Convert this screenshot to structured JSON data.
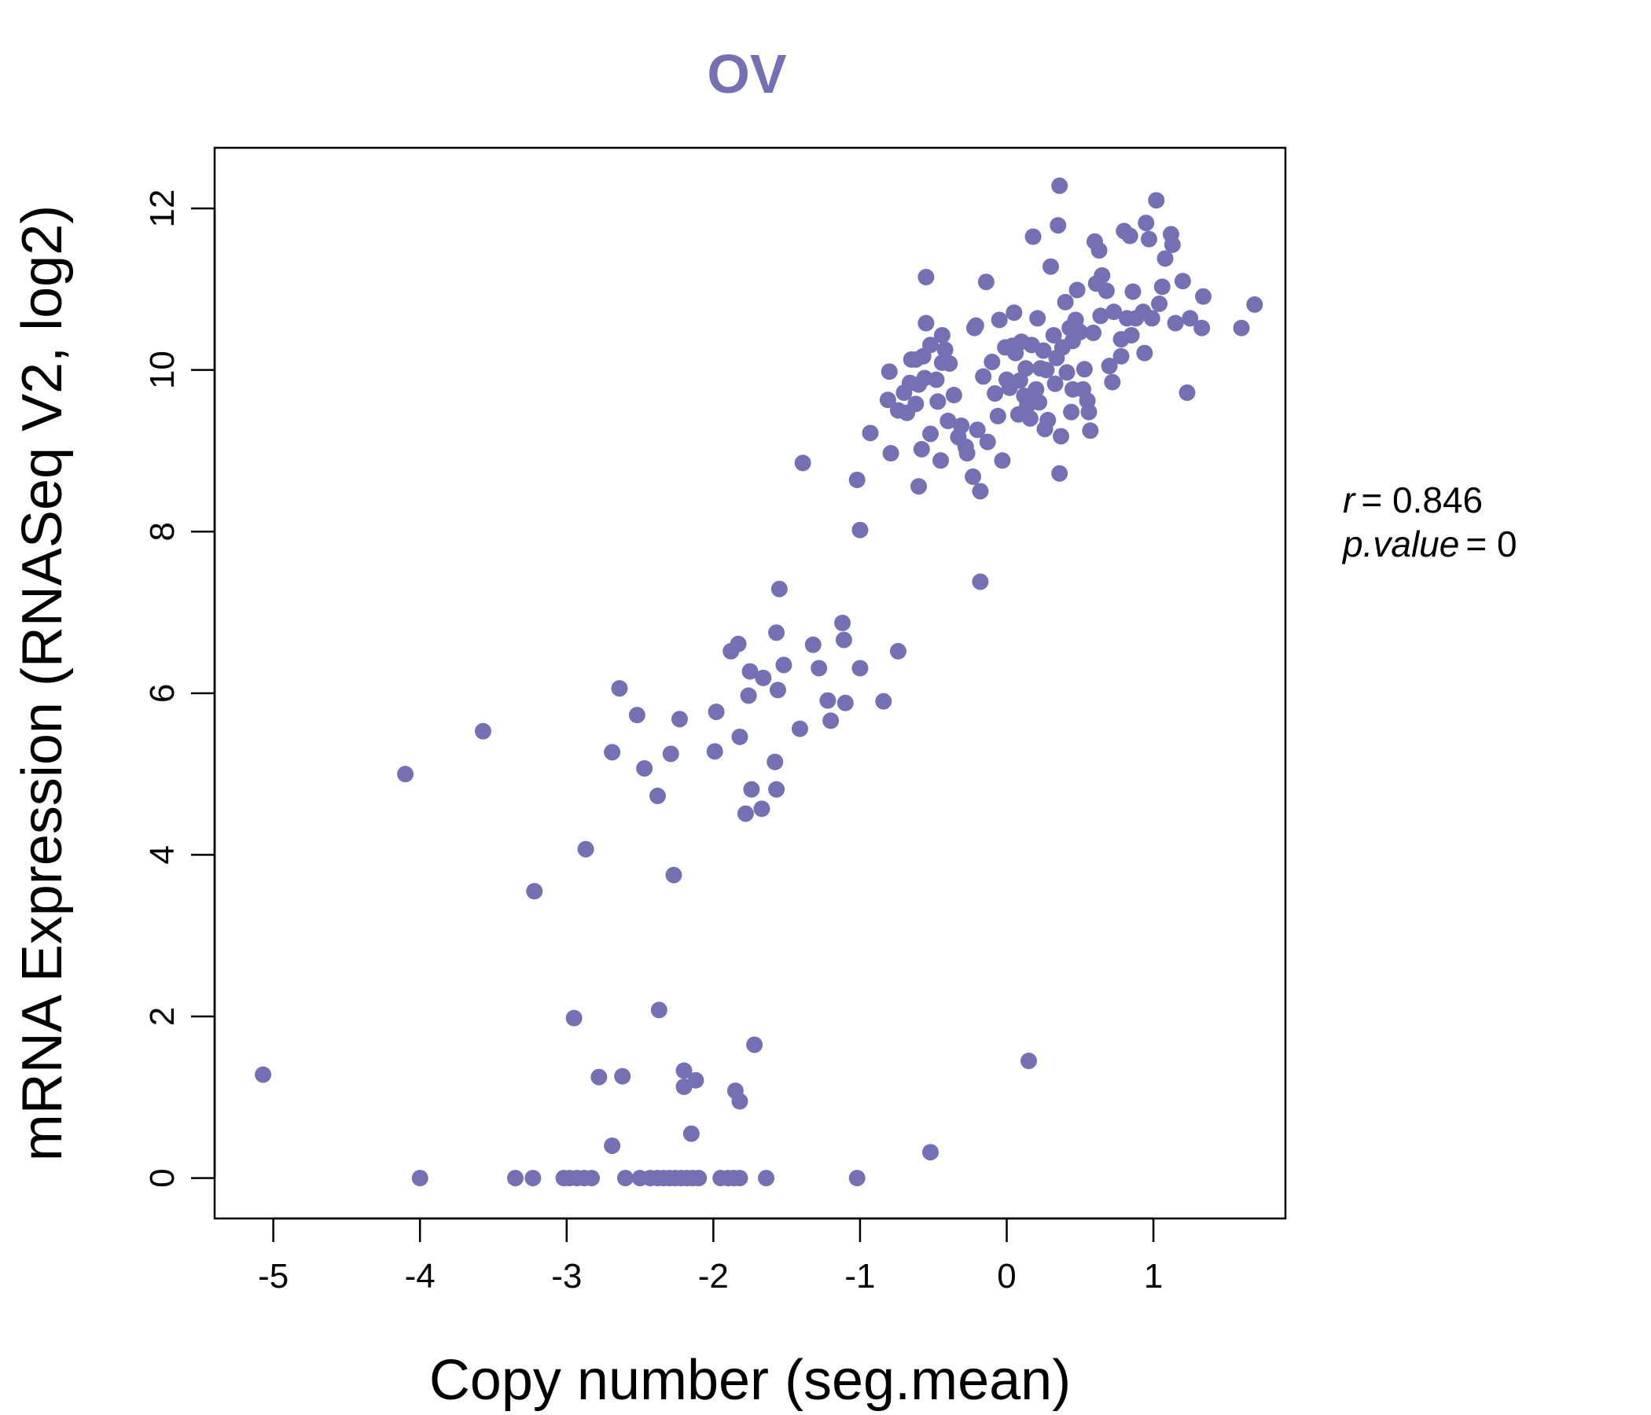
{
  "chart_data": {
    "type": "scatter",
    "title": "OV",
    "xlabel": "Copy number (seg.mean)",
    "ylabel": "mRNA Expression (RNASeq V2, log2)",
    "xlim": [
      -5.4,
      1.9
    ],
    "ylim": [
      -0.5,
      12.75
    ],
    "xticks": [
      -5,
      -4,
      -3,
      -2,
      -1,
      0,
      1
    ],
    "yticks": [
      0,
      2,
      4,
      6,
      8,
      10,
      12
    ],
    "xtick_labels": [
      "-5",
      "-4",
      "-3",
      "-2",
      "-1",
      "0",
      "1"
    ],
    "ytick_labels": [
      "0",
      "2",
      "4",
      "6",
      "8",
      "10",
      "12"
    ],
    "color": "#7570b3",
    "stats": {
      "r_label": "r",
      "r_value": "= 0.846",
      "p_label": "p.value",
      "p_value": "= 0"
    },
    "points": [
      [
        -5.07,
        1.28
      ],
      [
        -4.1,
        5.0
      ],
      [
        -4.0,
        0.0
      ],
      [
        -3.57,
        5.53
      ],
      [
        -3.22,
        3.55
      ],
      [
        -3.35,
        0.0
      ],
      [
        -3.23,
        0.0
      ],
      [
        -2.95,
        1.98
      ],
      [
        -2.87,
        4.07
      ],
      [
        -3.02,
        0.0
      ],
      [
        -2.98,
        0.0
      ],
      [
        -2.93,
        0.0
      ],
      [
        -2.88,
        0.0
      ],
      [
        -2.83,
        0.0
      ],
      [
        -2.78,
        1.25
      ],
      [
        -2.62,
        1.26
      ],
      [
        -2.69,
        0.4
      ],
      [
        -2.69,
        5.27
      ],
      [
        -2.64,
        6.06
      ],
      [
        -2.52,
        5.73
      ],
      [
        -2.47,
        5.07
      ],
      [
        -2.38,
        4.73
      ],
      [
        -2.37,
        2.08
      ],
      [
        -2.29,
        5.25
      ],
      [
        -2.27,
        3.75
      ],
      [
        -2.23,
        5.68
      ],
      [
        -2.2,
        1.33
      ],
      [
        -2.2,
        1.13
      ],
      [
        -2.12,
        1.21
      ],
      [
        -2.15,
        0.55
      ],
      [
        -2.6,
        0.0
      ],
      [
        -2.5,
        0.0
      ],
      [
        -2.43,
        0.0
      ],
      [
        -2.38,
        0.0
      ],
      [
        -2.34,
        0.0
      ],
      [
        -2.3,
        0.0
      ],
      [
        -2.26,
        0.0
      ],
      [
        -2.22,
        0.0
      ],
      [
        -2.18,
        0.0
      ],
      [
        -2.14,
        0.0
      ],
      [
        -2.1,
        0.0
      ],
      [
        -1.98,
        5.77
      ],
      [
        -1.99,
        5.28
      ],
      [
        -1.88,
        6.52
      ],
      [
        -1.83,
        6.61
      ],
      [
        -1.85,
        1.08
      ],
      [
        -1.82,
        0.95
      ],
      [
        -1.82,
        5.46
      ],
      [
        -1.78,
        4.51
      ],
      [
        -1.75,
        6.27
      ],
      [
        -1.76,
        5.97
      ],
      [
        -1.74,
        4.81
      ],
      [
        -1.72,
        1.65
      ],
      [
        -1.67,
        4.57
      ],
      [
        -1.66,
        6.19
      ],
      [
        -1.57,
        6.75
      ],
      [
        -1.56,
        6.04
      ],
      [
        -1.58,
        5.15
      ],
      [
        -1.57,
        4.81
      ],
      [
        -1.55,
        7.29
      ],
      [
        -1.52,
        6.35
      ],
      [
        -1.95,
        0.0
      ],
      [
        -1.9,
        0.0
      ],
      [
        -1.86,
        0.0
      ],
      [
        -1.82,
        0.0
      ],
      [
        -1.64,
        0.0
      ],
      [
        -1.41,
        5.56
      ],
      [
        -1.39,
        8.85
      ],
      [
        -1.32,
        6.6
      ],
      [
        -1.28,
        6.31
      ],
      [
        -1.22,
        5.91
      ],
      [
        -1.2,
        5.66
      ],
      [
        -1.12,
        6.87
      ],
      [
        -1.11,
        6.66
      ],
      [
        -1.1,
        5.88
      ],
      [
        -1.02,
        8.64
      ],
      [
        -1.0,
        8.02
      ],
      [
        -1.0,
        6.31
      ],
      [
        -1.02,
        0.0
      ],
      [
        -0.93,
        9.22
      ],
      [
        -0.84,
        5.9
      ],
      [
        -0.81,
        9.63
      ],
      [
        -0.79,
        8.97
      ],
      [
        -0.8,
        9.98
      ],
      [
        -0.74,
        6.52
      ],
      [
        -0.74,
        9.5
      ],
      [
        -0.7,
        9.72
      ],
      [
        -0.66,
        9.84
      ],
      [
        -0.65,
        10.13
      ],
      [
        -0.62,
        9.58
      ],
      [
        -0.6,
        9.82
      ],
      [
        -0.6,
        8.56
      ],
      [
        -0.58,
        9.02
      ],
      [
        -0.57,
        10.17
      ],
      [
        -0.55,
        11.15
      ],
      [
        -0.55,
        10.58
      ],
      [
        -0.52,
        10.31
      ],
      [
        -0.52,
        9.21
      ],
      [
        -0.48,
        9.88
      ],
      [
        -0.47,
        9.61
      ],
      [
        -0.45,
        8.88
      ],
      [
        -0.44,
        10.43
      ],
      [
        -0.42,
        10.25
      ],
      [
        -0.4,
        9.37
      ],
      [
        -0.39,
        10.08
      ],
      [
        -0.36,
        9.69
      ],
      [
        -0.33,
        9.17
      ],
      [
        -0.31,
        9.31
      ],
      [
        -0.28,
        9.05
      ],
      [
        -0.27,
        8.97
      ],
      [
        -0.23,
        8.68
      ],
      [
        -0.21,
        10.55
      ],
      [
        -0.2,
        9.26
      ],
      [
        -0.18,
        8.5
      ],
      [
        -0.18,
        7.38
      ],
      [
        -0.16,
        9.92
      ],
      [
        -0.14,
        11.09
      ],
      [
        -0.13,
        9.11
      ],
      [
        -0.1,
        10.1
      ],
      [
        -0.08,
        9.71
      ],
      [
        -0.05,
        10.62
      ],
      [
        -0.03,
        8.88
      ],
      [
        -0.01,
        10.28
      ],
      [
        0.0,
        9.88
      ],
      [
        0.02,
        9.78
      ],
      [
        0.05,
        10.71
      ],
      [
        0.06,
        10.21
      ],
      [
        0.08,
        9.45
      ],
      [
        0.09,
        9.87
      ],
      [
        0.1,
        10.35
      ],
      [
        0.12,
        9.68
      ],
      [
        0.13,
        10.02
      ],
      [
        0.14,
        9.56
      ],
      [
        0.15,
        1.45
      ],
      [
        0.16,
        9.4
      ],
      [
        0.17,
        10.31
      ],
      [
        0.18,
        11.65
      ],
      [
        0.2,
        9.76
      ],
      [
        0.21,
        10.64
      ],
      [
        0.23,
        10.02
      ],
      [
        0.25,
        10.24
      ],
      [
        0.26,
        9.27
      ],
      [
        0.28,
        9.38
      ],
      [
        0.3,
        11.28
      ],
      [
        0.32,
        10.43
      ],
      [
        0.33,
        9.83
      ],
      [
        0.34,
        10.15
      ],
      [
        0.35,
        11.79
      ],
      [
        0.36,
        12.28
      ],
      [
        0.36,
        8.72
      ],
      [
        0.37,
        9.18
      ],
      [
        0.38,
        10.28
      ],
      [
        0.4,
        10.84
      ],
      [
        0.41,
        9.97
      ],
      [
        0.43,
        10.52
      ],
      [
        0.44,
        9.48
      ],
      [
        0.45,
        9.76
      ],
      [
        0.47,
        10.62
      ],
      [
        0.48,
        10.99
      ],
      [
        0.5,
        10.47
      ],
      [
        0.52,
        9.76
      ],
      [
        0.55,
        9.62
      ],
      [
        0.56,
        9.48
      ],
      [
        0.57,
        9.25
      ],
      [
        0.59,
        10.46
      ],
      [
        0.6,
        11.59
      ],
      [
        0.61,
        11.07
      ],
      [
        0.63,
        11.48
      ],
      [
        0.64,
        10.67
      ],
      [
        0.65,
        11.17
      ],
      [
        0.68,
        10.98
      ],
      [
        0.7,
        10.05
      ],
      [
        0.72,
        9.85
      ],
      [
        0.73,
        10.72
      ],
      [
        0.78,
        10.17
      ],
      [
        0.78,
        10.38
      ],
      [
        0.8,
        11.72
      ],
      [
        0.82,
        10.64
      ],
      [
        0.84,
        11.66
      ],
      [
        0.85,
        10.43
      ],
      [
        0.86,
        10.97
      ],
      [
        0.88,
        10.64
      ],
      [
        0.93,
        10.72
      ],
      [
        0.94,
        10.21
      ],
      [
        0.95,
        11.82
      ],
      [
        0.97,
        11.62
      ],
      [
        0.99,
        10.64
      ],
      [
        1.02,
        12.1
      ],
      [
        1.04,
        10.82
      ],
      [
        1.06,
        11.03
      ],
      [
        1.08,
        11.38
      ],
      [
        1.12,
        11.68
      ],
      [
        1.13,
        11.55
      ],
      [
        1.15,
        10.58
      ],
      [
        1.2,
        11.1
      ],
      [
        1.23,
        9.72
      ],
      [
        1.25,
        10.64
      ],
      [
        1.33,
        10.52
      ],
      [
        1.34,
        10.91
      ],
      [
        1.6,
        10.52
      ],
      [
        1.69,
        10.81
      ],
      [
        -0.52,
        0.32
      ],
      [
        -0.62,
        10.13
      ],
      [
        -0.68,
        9.47
      ],
      [
        -0.56,
        9.9
      ],
      [
        -0.44,
        10.09
      ],
      [
        -0.22,
        10.52
      ],
      [
        -0.06,
        9.43
      ],
      [
        0.04,
        10.3
      ],
      [
        0.22,
        9.6
      ],
      [
        0.27,
        10.0
      ],
      [
        0.45,
        10.36
      ],
      [
        0.53,
        10.01
      ]
    ]
  }
}
